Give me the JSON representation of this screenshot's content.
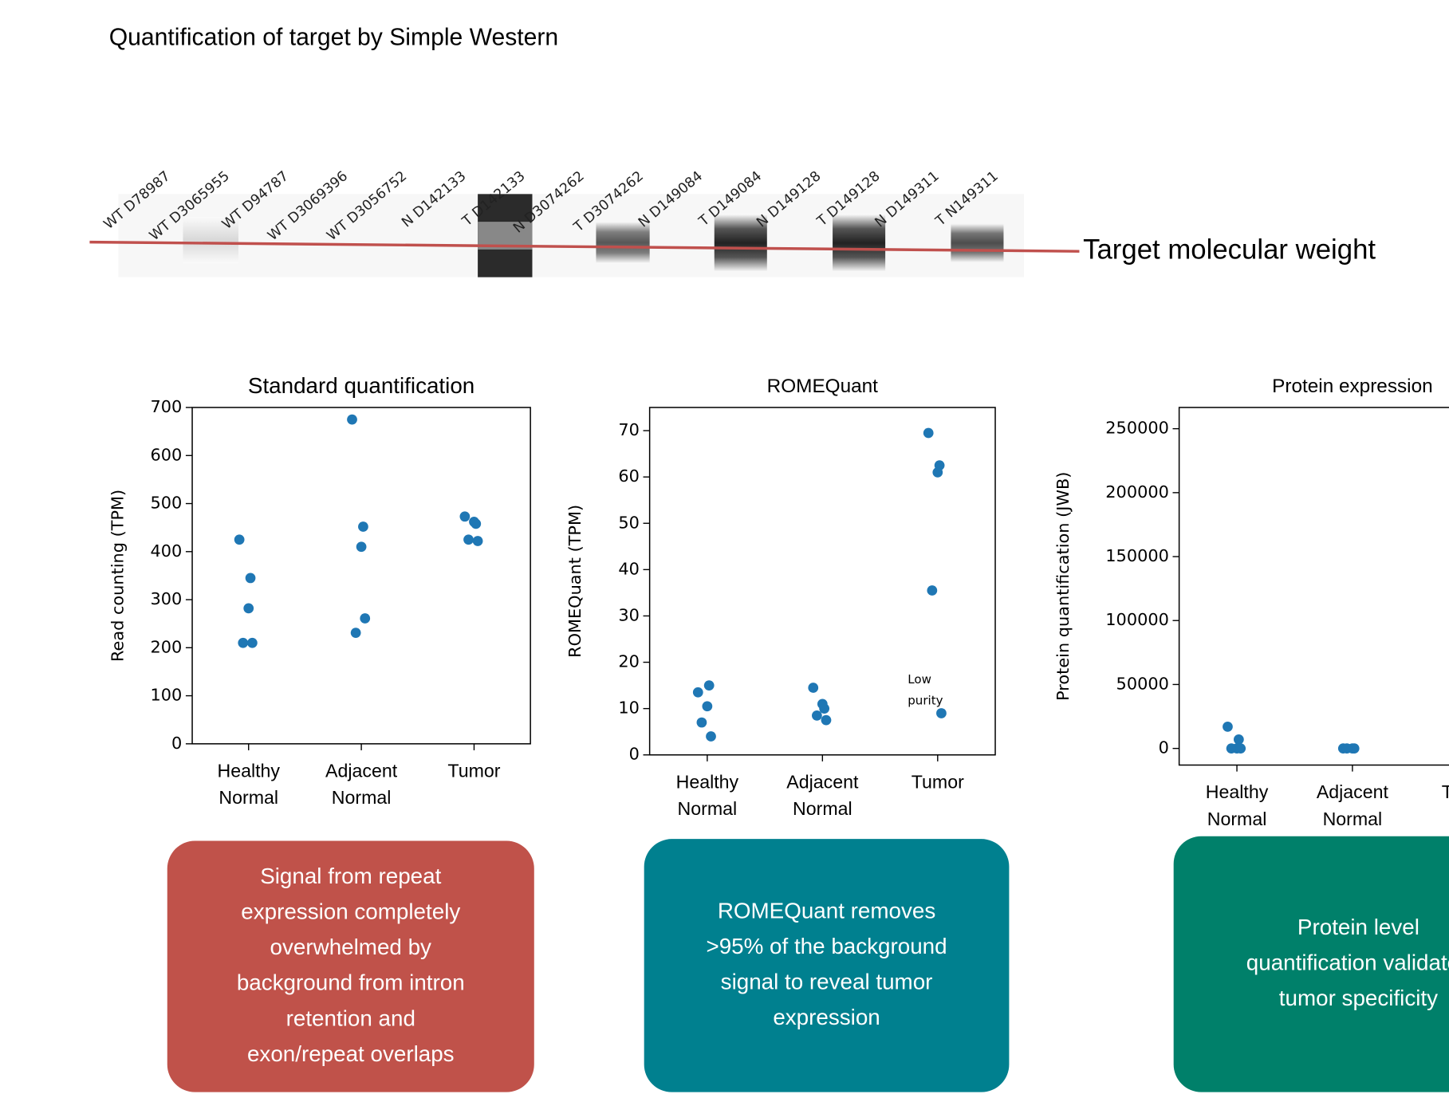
{
  "title": "Quantification of target by Simple Western",
  "blot": {
    "lanes": [
      "WT D78987",
      "WT D3065955",
      "WT D94787",
      "WT D3069396",
      "WT D3056752",
      "N D142133",
      "T D142133",
      "N D3074262",
      "T D3074262",
      "N D149084",
      "T D149084",
      "N D149128",
      "T D149128",
      "N D149311",
      "T N149311"
    ],
    "marker_label": "Target molecular weight"
  },
  "chart_data": [
    {
      "type": "scatter",
      "title": "Standard quantification",
      "ylabel": "Read counting (TPM)",
      "categories": [
        "Healthy\nNormal",
        "Adjacent\nNormal",
        "Tumor"
      ],
      "values": [
        [
          425,
          345,
          282,
          210,
          210
        ],
        [
          675,
          452,
          410,
          231,
          261
        ],
        [
          473,
          458,
          462,
          425,
          422
        ]
      ],
      "color": "#1f77b4",
      "ylim": [
        0,
        700
      ],
      "yticks": [
        0,
        100,
        200,
        300,
        400,
        500,
        600,
        700
      ]
    },
    {
      "type": "scatter",
      "title": "ROMEQuant",
      "ylabel": "ROMEQuant (TPM)",
      "categories": [
        "Healthy\nNormal",
        "Adjacent\nNormal",
        "Tumor"
      ],
      "values": [
        [
          13.5,
          15,
          10.5,
          7,
          4
        ],
        [
          14.5,
          10,
          11,
          8.5,
          7.5
        ],
        [
          69.5,
          62.5,
          61,
          35.5,
          9
        ]
      ],
      "annotation": "Low\npurity",
      "color": "#1f77b4",
      "ylim": [
        0,
        75
      ],
      "yticks": [
        0,
        10,
        20,
        30,
        40,
        50,
        60,
        70
      ]
    },
    {
      "type": "scatter",
      "title": "Protein expression",
      "ylabel": "Protein quantification (JWB)",
      "categories": [
        "Healthy\nNormal",
        "Adjacent\nNormal",
        "Tumor"
      ],
      "values": [
        [
          17000,
          7000,
          0,
          0,
          0
        ],
        [
          0,
          0,
          0,
          0
        ],
        []
      ],
      "color": "#1f77b4",
      "ylim": [
        -13000,
        266600
      ],
      "yticks": [
        0,
        50000,
        100000,
        150000,
        200000,
        250000
      ]
    }
  ],
  "boxes": [
    {
      "lines": [
        "Signal from repeat",
        "expression completely",
        "overwhelmed by",
        "background from intron",
        "retention and",
        "exon/repeat overlaps"
      ],
      "color": "#c0524a"
    },
    {
      "lines": [
        "ROMEQuant removes",
        ">95% of the background",
        "signal to reveal tumor",
        "expression"
      ],
      "color": "#00808f"
    },
    {
      "lines": [
        "Protein level",
        "quantification validates",
        "tumor specificity"
      ],
      "color": "#00806a"
    }
  ]
}
